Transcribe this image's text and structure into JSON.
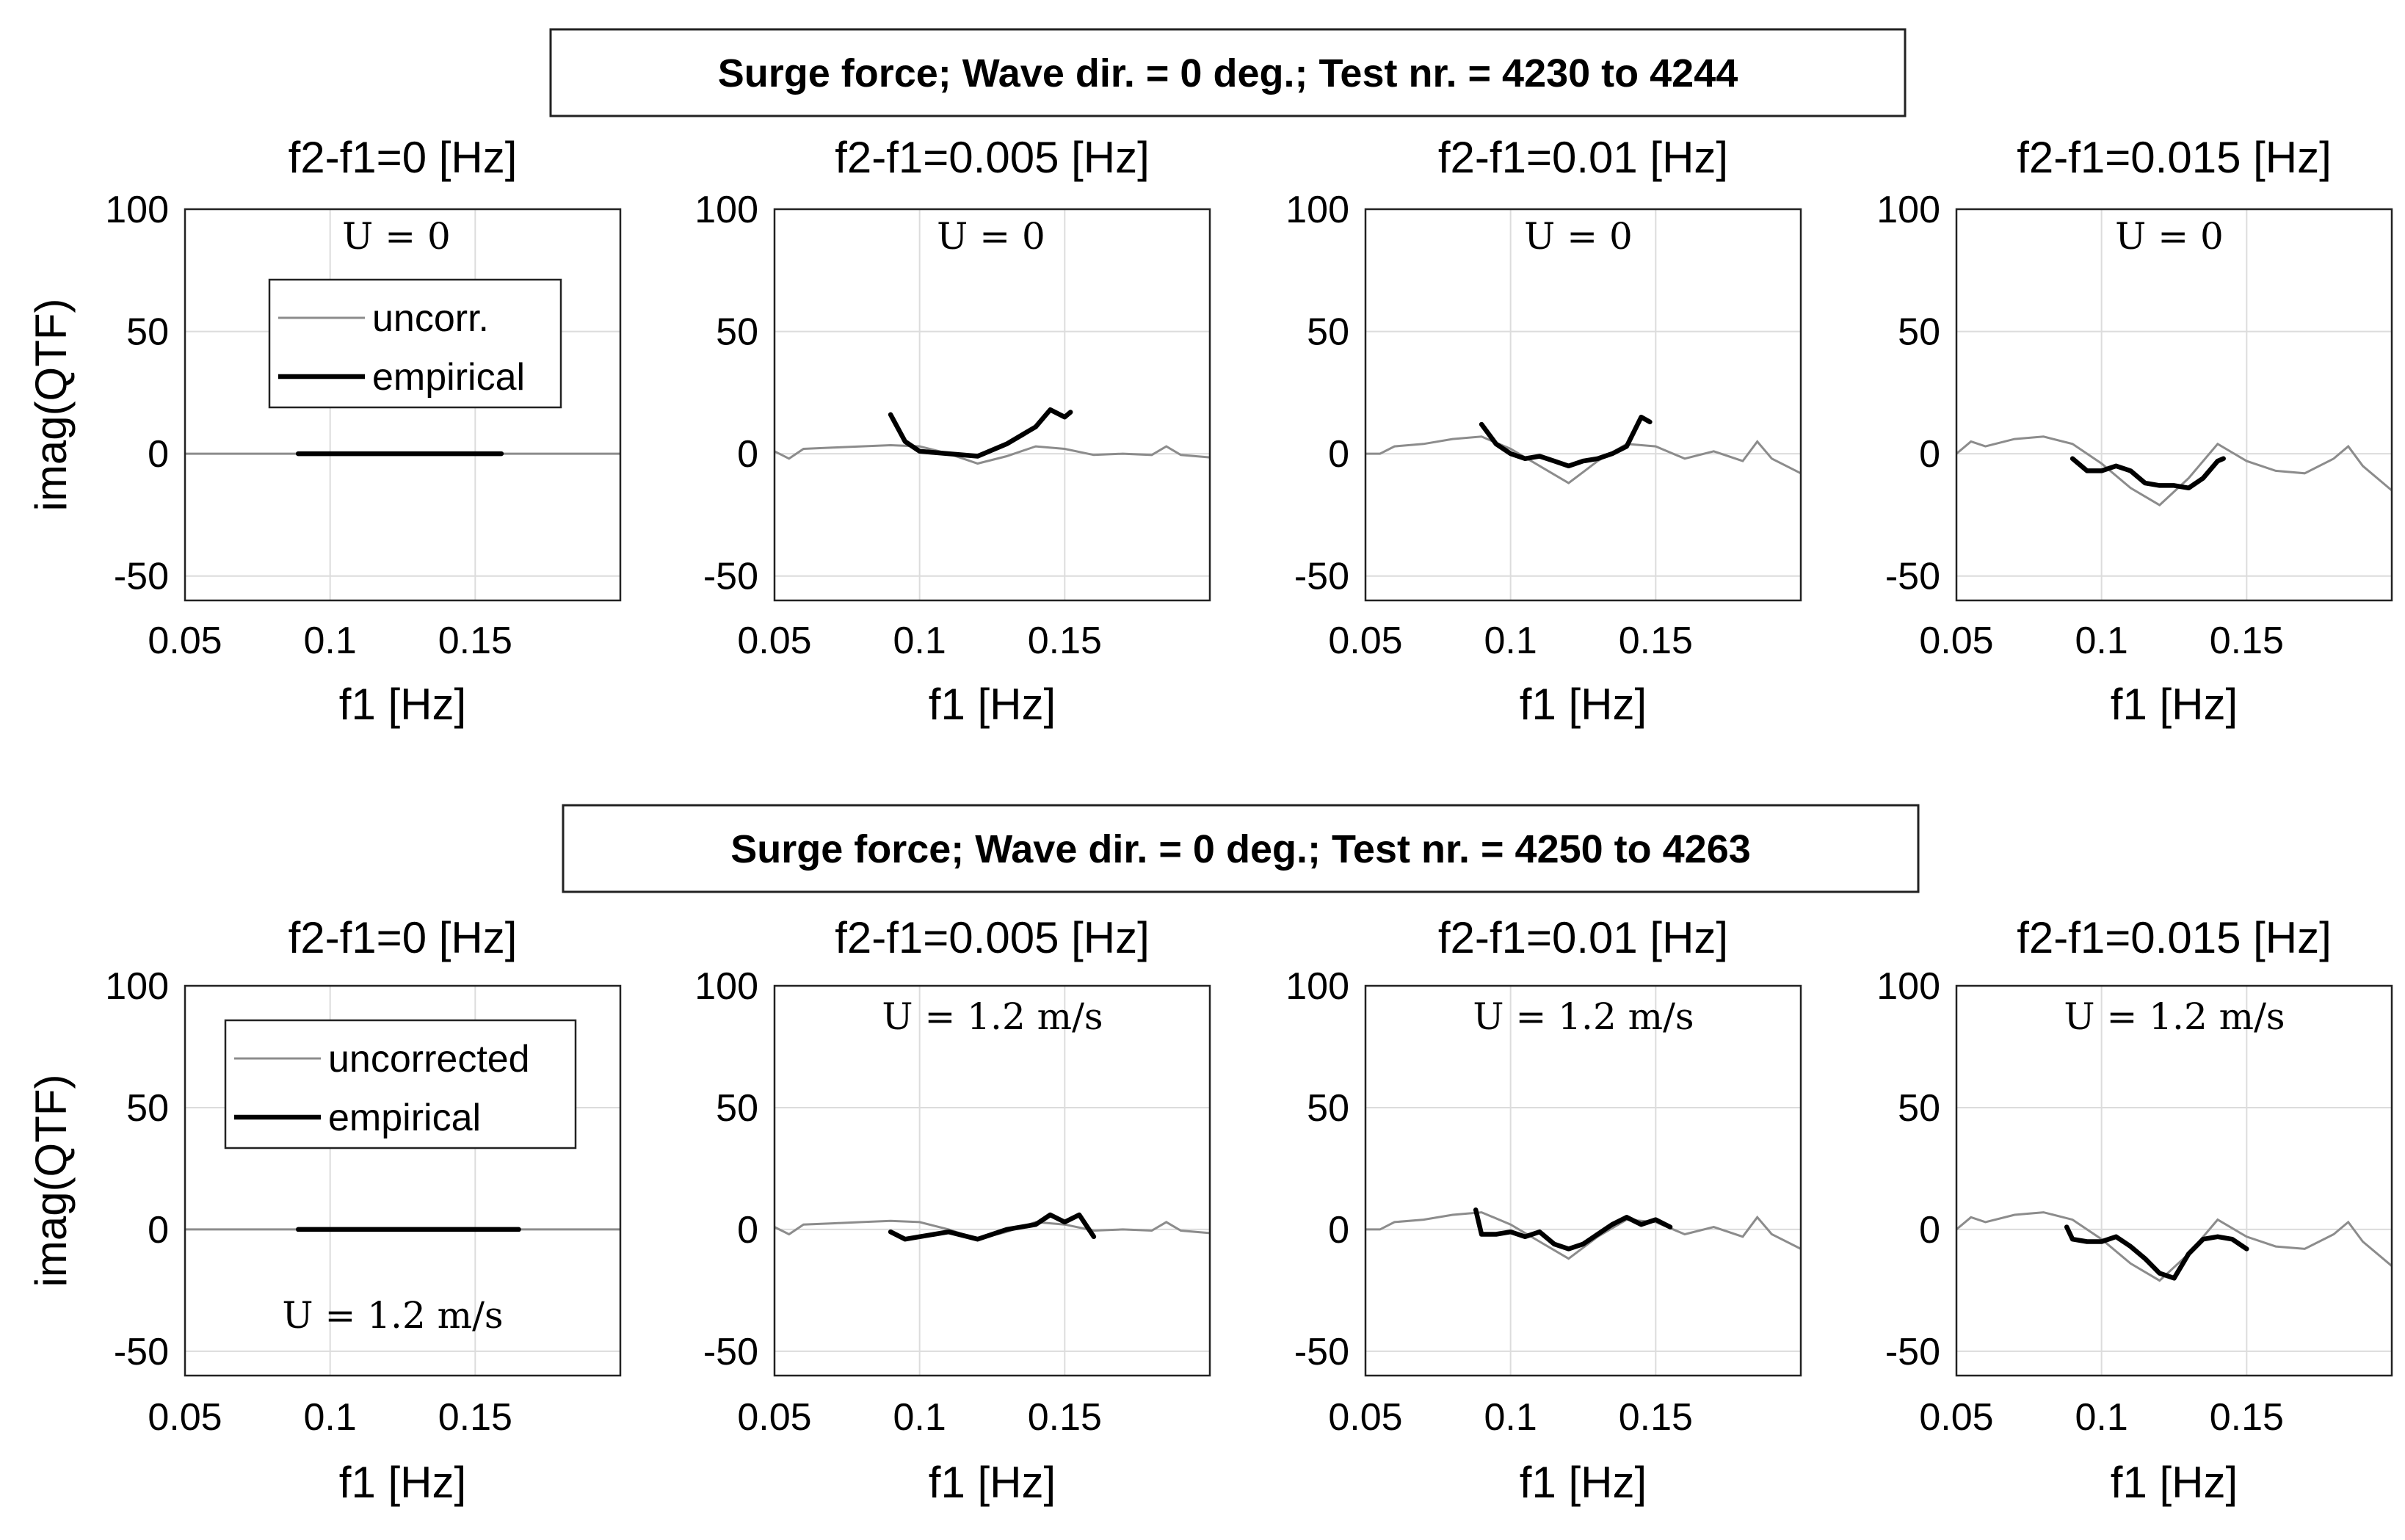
{
  "colors": {
    "uncorrected": "#8c8c8c",
    "empirical": "#000000",
    "grid": "#dcdcdc"
  },
  "chart_data": [
    {
      "group": "top",
      "title": "Surge force;  Wave dir. = 0 deg.;  Test nr. = 4230 to 4244",
      "ylabel": "imag(QTF)",
      "panels": [
        {
          "type": "line",
          "title": "f2-f1=0 [Hz]",
          "xlabel": "f1 [Hz]",
          "xlim": [
            0.05,
            0.2
          ],
          "ylim": [
            -60,
            100
          ],
          "xticks": [
            0.05,
            0.1,
            0.15
          ],
          "xtick_labels": [
            "0.05",
            "0.1",
            "0.15"
          ],
          "yticks": [
            -50,
            0,
            50,
            100
          ],
          "ytick_labels": [
            "-50",
            "0",
            "50",
            "100"
          ],
          "annotation": "U = 0",
          "legend": [
            "uncorr.",
            "empirical"
          ],
          "series": [
            {
              "name": "uncorr.",
              "x": [
                0.05,
                0.2
              ],
              "y": [
                0,
                0
              ]
            },
            {
              "name": "empirical",
              "x": [
                0.089,
                0.159
              ],
              "y": [
                0,
                0
              ]
            }
          ]
        },
        {
          "type": "line",
          "title": "f2-f1=0.005 [Hz]",
          "xlabel": "f1 [Hz]",
          "xlim": [
            0.05,
            0.2
          ],
          "ylim": [
            -60,
            100
          ],
          "xticks": [
            0.05,
            0.1,
            0.15
          ],
          "xtick_labels": [
            "0.05",
            "0.1",
            "0.15"
          ],
          "yticks": [
            -50,
            0,
            50,
            100
          ],
          "ytick_labels": [
            "-50",
            "0",
            "50",
            "100"
          ],
          "annotation": "U = 0",
          "series": [
            {
              "name": "uncorr.",
              "x": [
                0.05,
                0.055,
                0.06,
                0.07,
                0.08,
                0.09,
                0.1,
                0.11,
                0.12,
                0.13,
                0.14,
                0.15,
                0.16,
                0.17,
                0.18,
                0.185,
                0.19,
                0.2
              ],
              "y": [
                1,
                -2,
                2,
                2.5,
                3,
                3.5,
                3,
                0,
                -4,
                -1,
                3,
                2,
                -0.5,
                0,
                -0.5,
                3,
                -0.5,
                -1.5
              ]
            },
            {
              "name": "empirical",
              "x": [
                0.09,
                0.095,
                0.1,
                0.11,
                0.12,
                0.13,
                0.14,
                0.145,
                0.15,
                0.152
              ],
              "y": [
                16,
                5,
                1,
                0,
                -1,
                4,
                11,
                18,
                15,
                17
              ]
            }
          ]
        },
        {
          "type": "line",
          "title": "f2-f1=0.01 [Hz]",
          "xlabel": "f1 [Hz]",
          "xlim": [
            0.05,
            0.2
          ],
          "ylim": [
            -60,
            100
          ],
          "xticks": [
            0.05,
            0.1,
            0.15
          ],
          "xtick_labels": [
            "0.05",
            "0.1",
            "0.15"
          ],
          "yticks": [
            -50,
            0,
            50,
            100
          ],
          "ytick_labels": [
            "-50",
            "0",
            "50",
            "100"
          ],
          "annotation": "U = 0",
          "series": [
            {
              "name": "uncorr.",
              "x": [
                0.05,
                0.055,
                0.06,
                0.07,
                0.08,
                0.09,
                0.1,
                0.11,
                0.12,
                0.13,
                0.14,
                0.15,
                0.16,
                0.17,
                0.18,
                0.185,
                0.19,
                0.2
              ],
              "y": [
                0,
                0,
                3,
                4,
                6,
                7,
                2,
                -5,
                -12,
                -3,
                4,
                3,
                -2,
                1,
                -3,
                5,
                -2,
                -8
              ]
            },
            {
              "name": "empirical",
              "x": [
                0.09,
                0.095,
                0.1,
                0.105,
                0.11,
                0.115,
                0.12,
                0.125,
                0.13,
                0.135,
                0.14,
                0.145,
                0.148
              ],
              "y": [
                12,
                4,
                0,
                -2,
                -1,
                -3,
                -5,
                -3,
                -2,
                0,
                3,
                15,
                13
              ]
            }
          ]
        },
        {
          "type": "line",
          "title": "f2-f1=0.015 [Hz]",
          "xlabel": "f1 [Hz]",
          "xlim": [
            0.05,
            0.2
          ],
          "ylim": [
            -60,
            100
          ],
          "xticks": [
            0.05,
            0.1,
            0.15
          ],
          "xtick_labels": [
            "0.05",
            "0.1",
            "0.15"
          ],
          "yticks": [
            -50,
            0,
            50,
            100
          ],
          "ytick_labels": [
            "-50",
            "0",
            "50",
            "100"
          ],
          "annotation": "U = 0",
          "series": [
            {
              "name": "uncorr.",
              "x": [
                0.05,
                0.055,
                0.06,
                0.07,
                0.08,
                0.09,
                0.1,
                0.11,
                0.12,
                0.13,
                0.14,
                0.15,
                0.16,
                0.17,
                0.18,
                0.185,
                0.19,
                0.2
              ],
              "y": [
                0,
                5,
                3,
                6,
                7,
                4,
                -4,
                -14,
                -21,
                -10,
                4,
                -3,
                -7,
                -8,
                -2,
                3,
                -5,
                -15
              ]
            },
            {
              "name": "empirical",
              "x": [
                0.09,
                0.095,
                0.1,
                0.105,
                0.11,
                0.115,
                0.12,
                0.125,
                0.13,
                0.135,
                0.14,
                0.142
              ],
              "y": [
                -2,
                -7,
                -7,
                -5,
                -7,
                -12,
                -13,
                -13,
                -14,
                -10,
                -3,
                -2
              ]
            }
          ]
        }
      ]
    },
    {
      "group": "bottom",
      "title": "Surge force;  Wave dir. = 0 deg.;  Test nr. = 4250 to 4263",
      "ylabel": "imag(QTF)",
      "panels": [
        {
          "type": "line",
          "title": "f2-f1=0 [Hz]",
          "xlabel": "f1 [Hz]",
          "xlim": [
            0.05,
            0.2
          ],
          "ylim": [
            -60,
            100
          ],
          "xticks": [
            0.05,
            0.1,
            0.15
          ],
          "xtick_labels": [
            "0.05",
            "0.1",
            "0.15"
          ],
          "yticks": [
            -50,
            0,
            50,
            100
          ],
          "ytick_labels": [
            "-50",
            "0",
            "50",
            "100"
          ],
          "annotation": "U = 1.2 m/s",
          "legend": [
            "uncorrected",
            "empirical"
          ],
          "series": [
            {
              "name": "uncorrected",
              "x": [
                0.05,
                0.2
              ],
              "y": [
                0,
                0
              ]
            },
            {
              "name": "empirical",
              "x": [
                0.089,
                0.165
              ],
              "y": [
                0,
                0
              ]
            }
          ]
        },
        {
          "type": "line",
          "title": "f2-f1=0.005 [Hz]",
          "xlabel": "f1 [Hz]",
          "xlim": [
            0.05,
            0.2
          ],
          "ylim": [
            -60,
            100
          ],
          "xticks": [
            0.05,
            0.1,
            0.15
          ],
          "xtick_labels": [
            "0.05",
            "0.1",
            "0.15"
          ],
          "yticks": [
            -50,
            0,
            50,
            100
          ],
          "ytick_labels": [
            "-50",
            "0",
            "50",
            "100"
          ],
          "annotation": "U = 1.2 m/s",
          "series": [
            {
              "name": "uncorrected",
              "x": [
                0.05,
                0.055,
                0.06,
                0.07,
                0.08,
                0.09,
                0.1,
                0.11,
                0.12,
                0.13,
                0.14,
                0.15,
                0.16,
                0.17,
                0.18,
                0.185,
                0.19,
                0.2
              ],
              "y": [
                1,
                -2,
                2,
                2.5,
                3,
                3.5,
                3,
                0,
                -4,
                -1,
                3,
                2,
                -0.5,
                0,
                -0.5,
                3,
                -0.5,
                -1.5
              ]
            },
            {
              "name": "empirical",
              "x": [
                0.09,
                0.095,
                0.1,
                0.11,
                0.12,
                0.13,
                0.14,
                0.145,
                0.15,
                0.155,
                0.16
              ],
              "y": [
                -1,
                -4,
                -3,
                -1,
                -4,
                0,
                2,
                6,
                3,
                6,
                -3
              ]
            }
          ]
        },
        {
          "type": "line",
          "title": "f2-f1=0.01 [Hz]",
          "xlabel": "f1 [Hz]",
          "xlim": [
            0.05,
            0.2
          ],
          "ylim": [
            -60,
            100
          ],
          "xticks": [
            0.05,
            0.1,
            0.15
          ],
          "xtick_labels": [
            "0.05",
            "0.1",
            "0.15"
          ],
          "yticks": [
            -50,
            0,
            50,
            100
          ],
          "ytick_labels": [
            "-50",
            "0",
            "50",
            "100"
          ],
          "annotation": "U = 1.2 m/s",
          "series": [
            {
              "name": "uncorrected",
              "x": [
                0.05,
                0.055,
                0.06,
                0.07,
                0.08,
                0.09,
                0.1,
                0.11,
                0.12,
                0.13,
                0.14,
                0.15,
                0.16,
                0.17,
                0.18,
                0.185,
                0.19,
                0.2
              ],
              "y": [
                0,
                0,
                3,
                4,
                6,
                7,
                2,
                -5,
                -12,
                -3,
                4,
                3,
                -2,
                1,
                -3,
                5,
                -2,
                -8
              ]
            },
            {
              "name": "empirical",
              "x": [
                0.088,
                0.09,
                0.095,
                0.1,
                0.105,
                0.11,
                0.115,
                0.12,
                0.125,
                0.13,
                0.135,
                0.14,
                0.145,
                0.15,
                0.155
              ],
              "y": [
                8,
                -2,
                -2,
                -1,
                -3,
                -1,
                -6,
                -8,
                -6,
                -2,
                2,
                5,
                2,
                4,
                1
              ]
            }
          ]
        },
        {
          "type": "line",
          "title": "f2-f1=0.015 [Hz]",
          "xlabel": "f1 [Hz]",
          "xlim": [
            0.05,
            0.2
          ],
          "ylim": [
            -60,
            100
          ],
          "xticks": [
            0.05,
            0.1,
            0.15
          ],
          "xtick_labels": [
            "0.05",
            "0.1",
            "0.15"
          ],
          "yticks": [
            -50,
            0,
            50,
            100
          ],
          "ytick_labels": [
            "-50",
            "0",
            "50",
            "100"
          ],
          "annotation": "U = 1.2 m/s",
          "series": [
            {
              "name": "uncorrected",
              "x": [
                0.05,
                0.055,
                0.06,
                0.07,
                0.08,
                0.09,
                0.1,
                0.11,
                0.12,
                0.13,
                0.14,
                0.15,
                0.16,
                0.17,
                0.18,
                0.185,
                0.19,
                0.2
              ],
              "y": [
                0,
                5,
                3,
                6,
                7,
                4,
                -4,
                -14,
                -21,
                -10,
                4,
                -3,
                -7,
                -8,
                -2,
                3,
                -5,
                -15
              ]
            },
            {
              "name": "empirical",
              "x": [
                0.088,
                0.09,
                0.095,
                0.1,
                0.105,
                0.11,
                0.115,
                0.12,
                0.125,
                0.13,
                0.135,
                0.14,
                0.145,
                0.15
              ],
              "y": [
                1,
                -4,
                -5,
                -5,
                -3,
                -7,
                -12,
                -18,
                -20,
                -10,
                -4,
                -3,
                -4,
                -8
              ]
            }
          ]
        }
      ]
    }
  ]
}
